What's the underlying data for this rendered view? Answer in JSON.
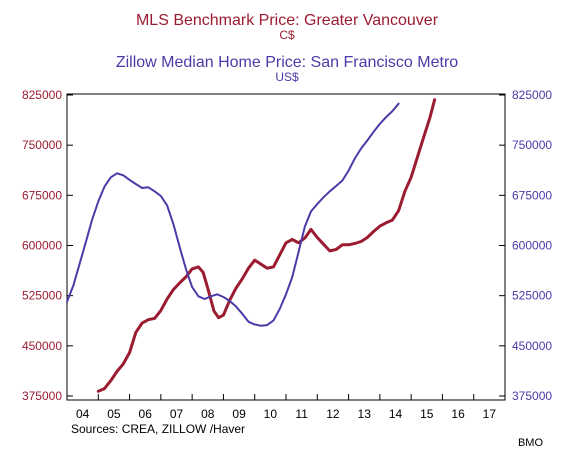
{
  "chart_data": {
    "type": "line",
    "titles": [
      {
        "text": "MLS Benchmark Price: Greater Vancouver",
        "unit": "C$",
        "color": "#9b1c31"
      },
      {
        "text": "Zillow Median Home Price: San Francisco Metro",
        "unit": "US$",
        "color": "#4b3aa8"
      }
    ],
    "x_ticks": [
      "04",
      "05",
      "06",
      "07",
      "08",
      "09",
      "10",
      "11",
      "12",
      "13",
      "14",
      "15",
      "16",
      "17"
    ],
    "x_range": [
      2004.0,
      2018.0
    ],
    "left_axis": {
      "ylim": [
        375000,
        825000
      ],
      "ticks": [
        "825000",
        "750000",
        "675000",
        "600000",
        "525000",
        "450000",
        "375000"
      ],
      "color": "#9b1c31"
    },
    "right_axis": {
      "ylim": [
        375000,
        825000
      ],
      "ticks": [
        "825000",
        "750000",
        "675000",
        "600000",
        "525000",
        "450000",
        "375000"
      ],
      "color": "#4b3aa8"
    },
    "series": [
      {
        "name": "MLS Benchmark Price: Greater Vancouver",
        "axis": "left",
        "color": "#9b1c31",
        "points": [
          [
            2005.0,
            382000
          ],
          [
            2005.2,
            386000
          ],
          [
            2005.4,
            398000
          ],
          [
            2005.6,
            412000
          ],
          [
            2005.8,
            423000
          ],
          [
            2006.0,
            440000
          ],
          [
            2006.2,
            470000
          ],
          [
            2006.4,
            484000
          ],
          [
            2006.6,
            489000
          ],
          [
            2006.8,
            491000
          ],
          [
            2007.0,
            503000
          ],
          [
            2007.2,
            520000
          ],
          [
            2007.4,
            534000
          ],
          [
            2007.6,
            544000
          ],
          [
            2007.8,
            553000
          ],
          [
            2008.0,
            565000
          ],
          [
            2008.2,
            568000
          ],
          [
            2008.35,
            560000
          ],
          [
            2008.5,
            536000
          ],
          [
            2008.7,
            502000
          ],
          [
            2008.85,
            492000
          ],
          [
            2009.0,
            496000
          ],
          [
            2009.2,
            518000
          ],
          [
            2009.4,
            536000
          ],
          [
            2009.6,
            550000
          ],
          [
            2009.8,
            566000
          ],
          [
            2010.0,
            578000
          ],
          [
            2010.2,
            572000
          ],
          [
            2010.4,
            566000
          ],
          [
            2010.6,
            568000
          ],
          [
            2010.8,
            586000
          ],
          [
            2011.0,
            604000
          ],
          [
            2011.2,
            609000
          ],
          [
            2011.4,
            604000
          ],
          [
            2011.6,
            611000
          ],
          [
            2011.8,
            624000
          ],
          [
            2012.0,
            612000
          ],
          [
            2012.2,
            602000
          ],
          [
            2012.4,
            592000
          ],
          [
            2012.6,
            594000
          ],
          [
            2012.8,
            601000
          ],
          [
            2013.0,
            601000
          ],
          [
            2013.2,
            603000
          ],
          [
            2013.4,
            606000
          ],
          [
            2013.6,
            612000
          ],
          [
            2013.8,
            621000
          ],
          [
            2014.0,
            629000
          ],
          [
            2014.2,
            634000
          ],
          [
            2014.4,
            638000
          ],
          [
            2014.6,
            652000
          ],
          [
            2014.8,
            681000
          ],
          [
            2015.0,
            702000
          ],
          [
            2015.2,
            732000
          ],
          [
            2015.4,
            762000
          ],
          [
            2015.6,
            791000
          ],
          [
            2015.75,
            818000
          ]
        ]
      },
      {
        "name": "Zillow Median Home Price: San Francisco Metro",
        "axis": "right",
        "color": "#4b3aa8",
        "points": [
          [
            2004.0,
            516000
          ],
          [
            2004.2,
            540000
          ],
          [
            2004.4,
            572000
          ],
          [
            2004.6,
            605000
          ],
          [
            2004.8,
            638000
          ],
          [
            2005.0,
            666000
          ],
          [
            2005.2,
            688000
          ],
          [
            2005.4,
            702000
          ],
          [
            2005.6,
            708000
          ],
          [
            2005.8,
            705000
          ],
          [
            2006.0,
            698000
          ],
          [
            2006.2,
            692000
          ],
          [
            2006.4,
            686000
          ],
          [
            2006.6,
            687000
          ],
          [
            2006.8,
            681000
          ],
          [
            2007.0,
            674000
          ],
          [
            2007.2,
            660000
          ],
          [
            2007.4,
            632000
          ],
          [
            2007.6,
            598000
          ],
          [
            2007.8,
            565000
          ],
          [
            2008.0,
            538000
          ],
          [
            2008.2,
            524000
          ],
          [
            2008.4,
            520000
          ],
          [
            2008.6,
            524000
          ],
          [
            2008.8,
            527000
          ],
          [
            2009.0,
            523000
          ],
          [
            2009.2,
            517000
          ],
          [
            2009.4,
            509000
          ],
          [
            2009.6,
            498000
          ],
          [
            2009.8,
            486000
          ],
          [
            2010.0,
            482000
          ],
          [
            2010.2,
            480000
          ],
          [
            2010.4,
            481000
          ],
          [
            2010.6,
            488000
          ],
          [
            2010.8,
            505000
          ],
          [
            2011.0,
            527000
          ],
          [
            2011.2,
            553000
          ],
          [
            2011.4,
            590000
          ],
          [
            2011.6,
            628000
          ],
          [
            2011.8,
            651000
          ],
          [
            2012.0,
            662000
          ],
          [
            2012.2,
            672000
          ],
          [
            2012.4,
            681000
          ],
          [
            2012.6,
            689000
          ],
          [
            2012.8,
            697000
          ],
          [
            2013.0,
            712000
          ],
          [
            2013.2,
            730000
          ],
          [
            2013.4,
            745000
          ],
          [
            2013.6,
            757000
          ],
          [
            2013.8,
            770000
          ],
          [
            2014.0,
            782000
          ],
          [
            2014.2,
            792000
          ],
          [
            2014.4,
            801000
          ],
          [
            2014.6,
            812000
          ]
        ]
      }
    ],
    "source": "Sources:  CREA, ZILLOW /Haver",
    "credit": "BMO",
    "grid": false,
    "legend": "none"
  }
}
